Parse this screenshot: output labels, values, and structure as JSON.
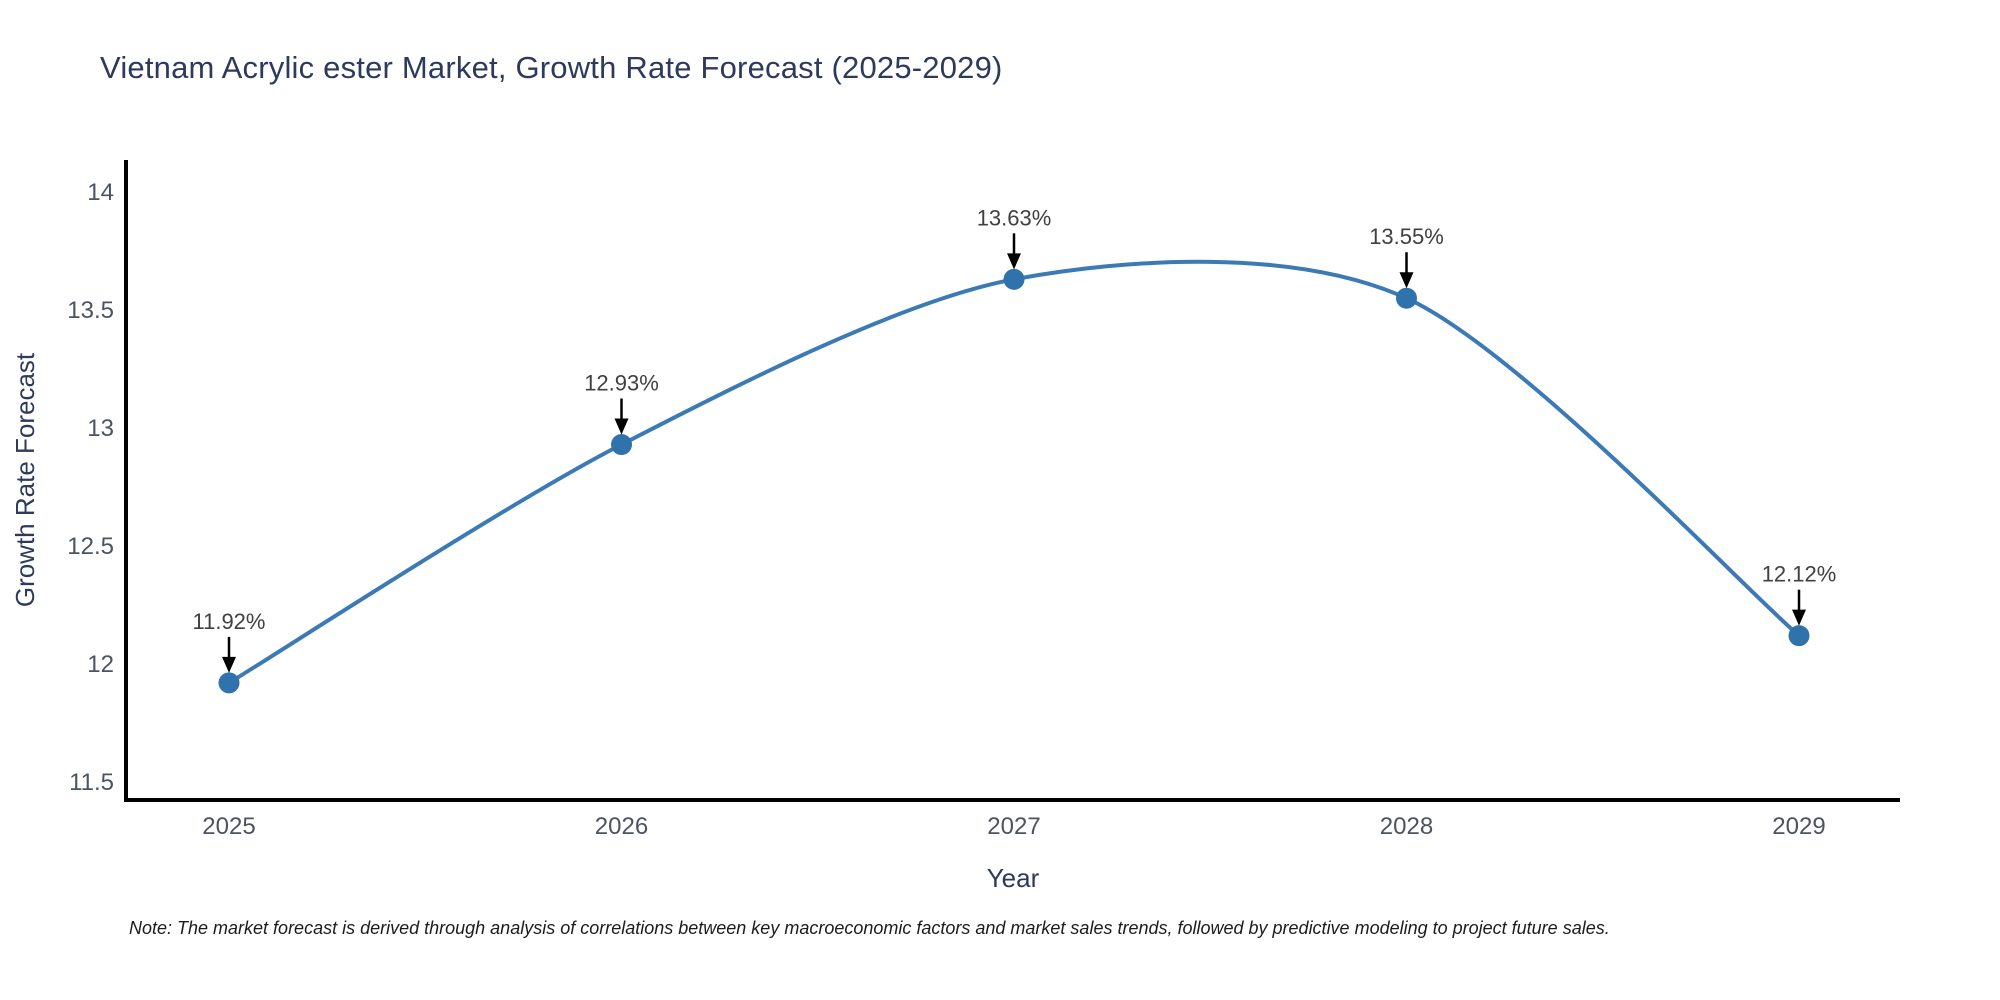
{
  "note": "Note: The market forecast is derived through analysis of correlations between key macroeconomic factors and market sales trends, followed by predictive modeling to project future sales.",
  "chart_data": {
    "type": "line",
    "line_shape": "spline",
    "title": "Vietnam Acrylic ester Market, Growth Rate Forecast (2025-2029)",
    "xlabel": "Year",
    "ylabel": "Growth Rate Forecast",
    "x": [
      2025,
      2026,
      2027,
      2028,
      2029
    ],
    "y": [
      11.92,
      12.93,
      13.63,
      13.55,
      12.12
    ],
    "point_labels": [
      "11.92%",
      "12.93%",
      "13.63%",
      "13.55%",
      "12.12%"
    ],
    "x_tick_labels": [
      "2025",
      "2026",
      "2027",
      "2028",
      "2029"
    ],
    "y_tick_values": [
      14,
      13.5,
      13,
      12.5,
      12,
      11.5
    ],
    "y_tick_labels": [
      "14",
      "13.5",
      "13",
      "12.5",
      "12",
      "11.5"
    ],
    "ylim": [
      11.42,
      14.14
    ],
    "xlim": [
      2024.74,
      2029.26
    ],
    "grid": false,
    "legend": "none",
    "annotations_have_arrows": true,
    "line_color": "#3b7ab5",
    "marker_color": "#3072ab",
    "axis_color": "#000000",
    "arrow_color": "#000000"
  }
}
